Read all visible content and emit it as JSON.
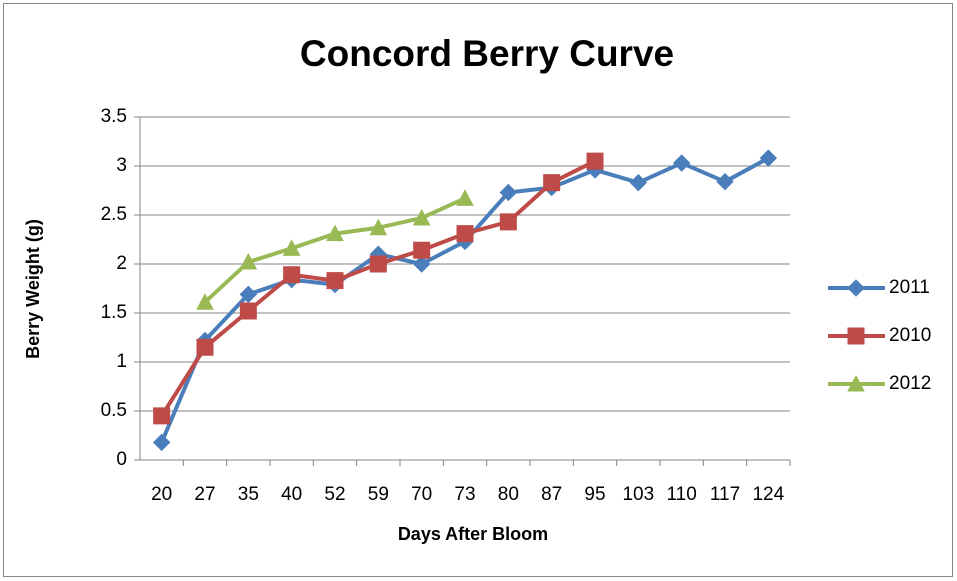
{
  "chart_data": {
    "type": "line",
    "title": "Concord Berry Curve",
    "x_label": "Days After Bloom",
    "y_label": "Berry Weight (g)",
    "categories": [
      "20",
      "27",
      "35",
      "40",
      "52",
      "59",
      "70",
      "73",
      "80",
      "87",
      "95",
      "103",
      "110",
      "117",
      "124"
    ],
    "series": [
      {
        "name": "2011",
        "color": "#4a7ebb",
        "marker": "diamond",
        "values": [
          0.18,
          1.22,
          1.69,
          1.84,
          1.79,
          2.1,
          2.0,
          2.23,
          2.73,
          2.78,
          2.96,
          2.83,
          3.03,
          2.84,
          3.08
        ]
      },
      {
        "name": "2010",
        "color": "#be4b48",
        "marker": "square",
        "values": [
          0.45,
          1.15,
          1.52,
          1.89,
          1.83,
          2.0,
          2.14,
          2.31,
          2.43,
          2.83,
          3.05,
          null,
          null,
          null,
          null
        ]
      },
      {
        "name": "2012",
        "color": "#98b954",
        "marker": "triangle",
        "values": [
          null,
          1.61,
          2.02,
          2.16,
          2.31,
          2.37,
          2.47,
          2.67,
          null,
          null,
          null,
          null,
          null,
          null,
          null
        ]
      }
    ],
    "ylim": [
      0,
      3.5
    ],
    "yticks": [
      0,
      0.5,
      1,
      1.5,
      2,
      2.5,
      3,
      3.5
    ],
    "grid": true,
    "legend": "right"
  }
}
